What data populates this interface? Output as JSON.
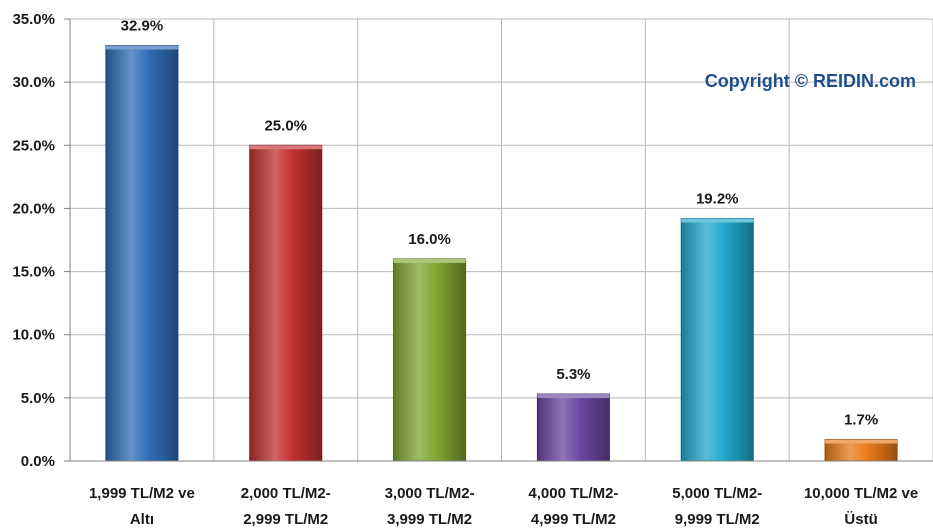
{
  "chart_data": {
    "type": "bar",
    "categories": [
      [
        "1,999 TL/M2 ve",
        "Altı"
      ],
      [
        "2,000 TL/M2-",
        "2,999 TL/M2"
      ],
      [
        "3,000 TL/M2-",
        "3,999 TL/M2"
      ],
      [
        "4,000 TL/M2-",
        "4,999 TL/M2"
      ],
      [
        "5,000 TL/M2-",
        "9,999 TL/M2"
      ],
      [
        "10,000 TL/M2 ve",
        "Üstü"
      ]
    ],
    "values": [
      32.9,
      25.0,
      16.0,
      5.3,
      19.2,
      1.7
    ],
    "value_labels": [
      "32.9%",
      "25.0%",
      "16.0%",
      "5.3%",
      "19.2%",
      "1.7%"
    ],
    "ylim": [
      0,
      35
    ],
    "yticks": [
      0,
      5,
      10,
      15,
      20,
      25,
      30,
      35
    ],
    "ytick_labels": [
      "0.0%",
      "5.0%",
      "10.0%",
      "15.0%",
      "20.0%",
      "25.0%",
      "30.0%",
      "35.0%"
    ],
    "grid": "vertical and horizontal gridlines",
    "bar_colors": [
      "#2f6db6",
      "#c0302f",
      "#7fa532",
      "#6b45a0",
      "#1fa7cc",
      "#e87a1a"
    ],
    "annotation": "Copyright © REIDIN.com",
    "annotation_color": "#1f4e8c",
    "annotation_position": "top-right"
  }
}
